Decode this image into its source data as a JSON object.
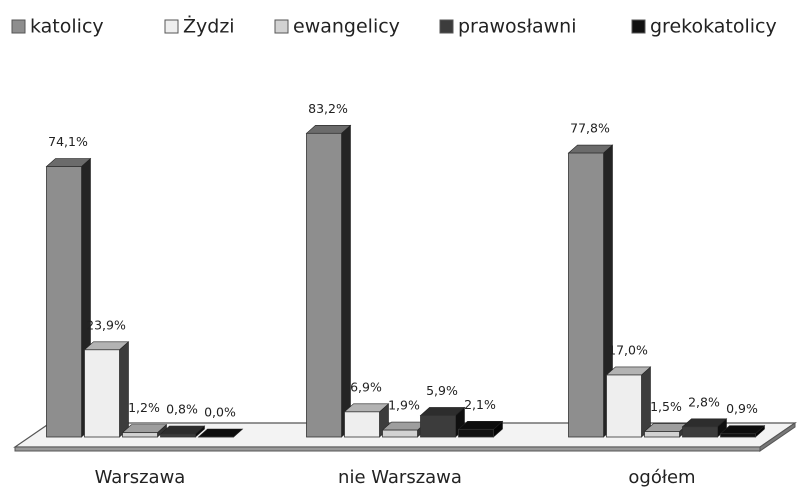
{
  "chart_data": {
    "type": "bar3d",
    "categories": [
      "Warszawa",
      "nie Warszawa",
      "ogółem"
    ],
    "series": [
      {
        "name": "katolicy",
        "color": "#8e8e8e",
        "values": [
          74.1,
          83.2,
          77.8
        ],
        "value_labels": [
          "74,1%",
          "83,2%",
          "77,8%"
        ]
      },
      {
        "name": "Żydzi",
        "color": "#eeeeee",
        "values": [
          23.9,
          6.9,
          17.0
        ],
        "value_labels": [
          "23,9%",
          "6,9%",
          "17,0%"
        ]
      },
      {
        "name": "ewangelicy",
        "color": "#d2d2d2",
        "values": [
          1.2,
          1.9,
          1.5
        ],
        "value_labels": [
          "1,2%",
          "1,9%",
          "1,5%"
        ]
      },
      {
        "name": "prawosławni",
        "color": "#3c3c3c",
        "values": [
          0.8,
          5.9,
          2.8
        ],
        "value_labels": [
          "0,8%",
          "5,9%",
          "2,8%"
        ]
      },
      {
        "name": "grekokatolicy",
        "color": "#111111",
        "values": [
          0.0,
          2.1,
          0.9
        ],
        "value_labels": [
          "0,0%",
          "2,1%",
          "0,9%"
        ]
      }
    ],
    "legend": "top"
  }
}
